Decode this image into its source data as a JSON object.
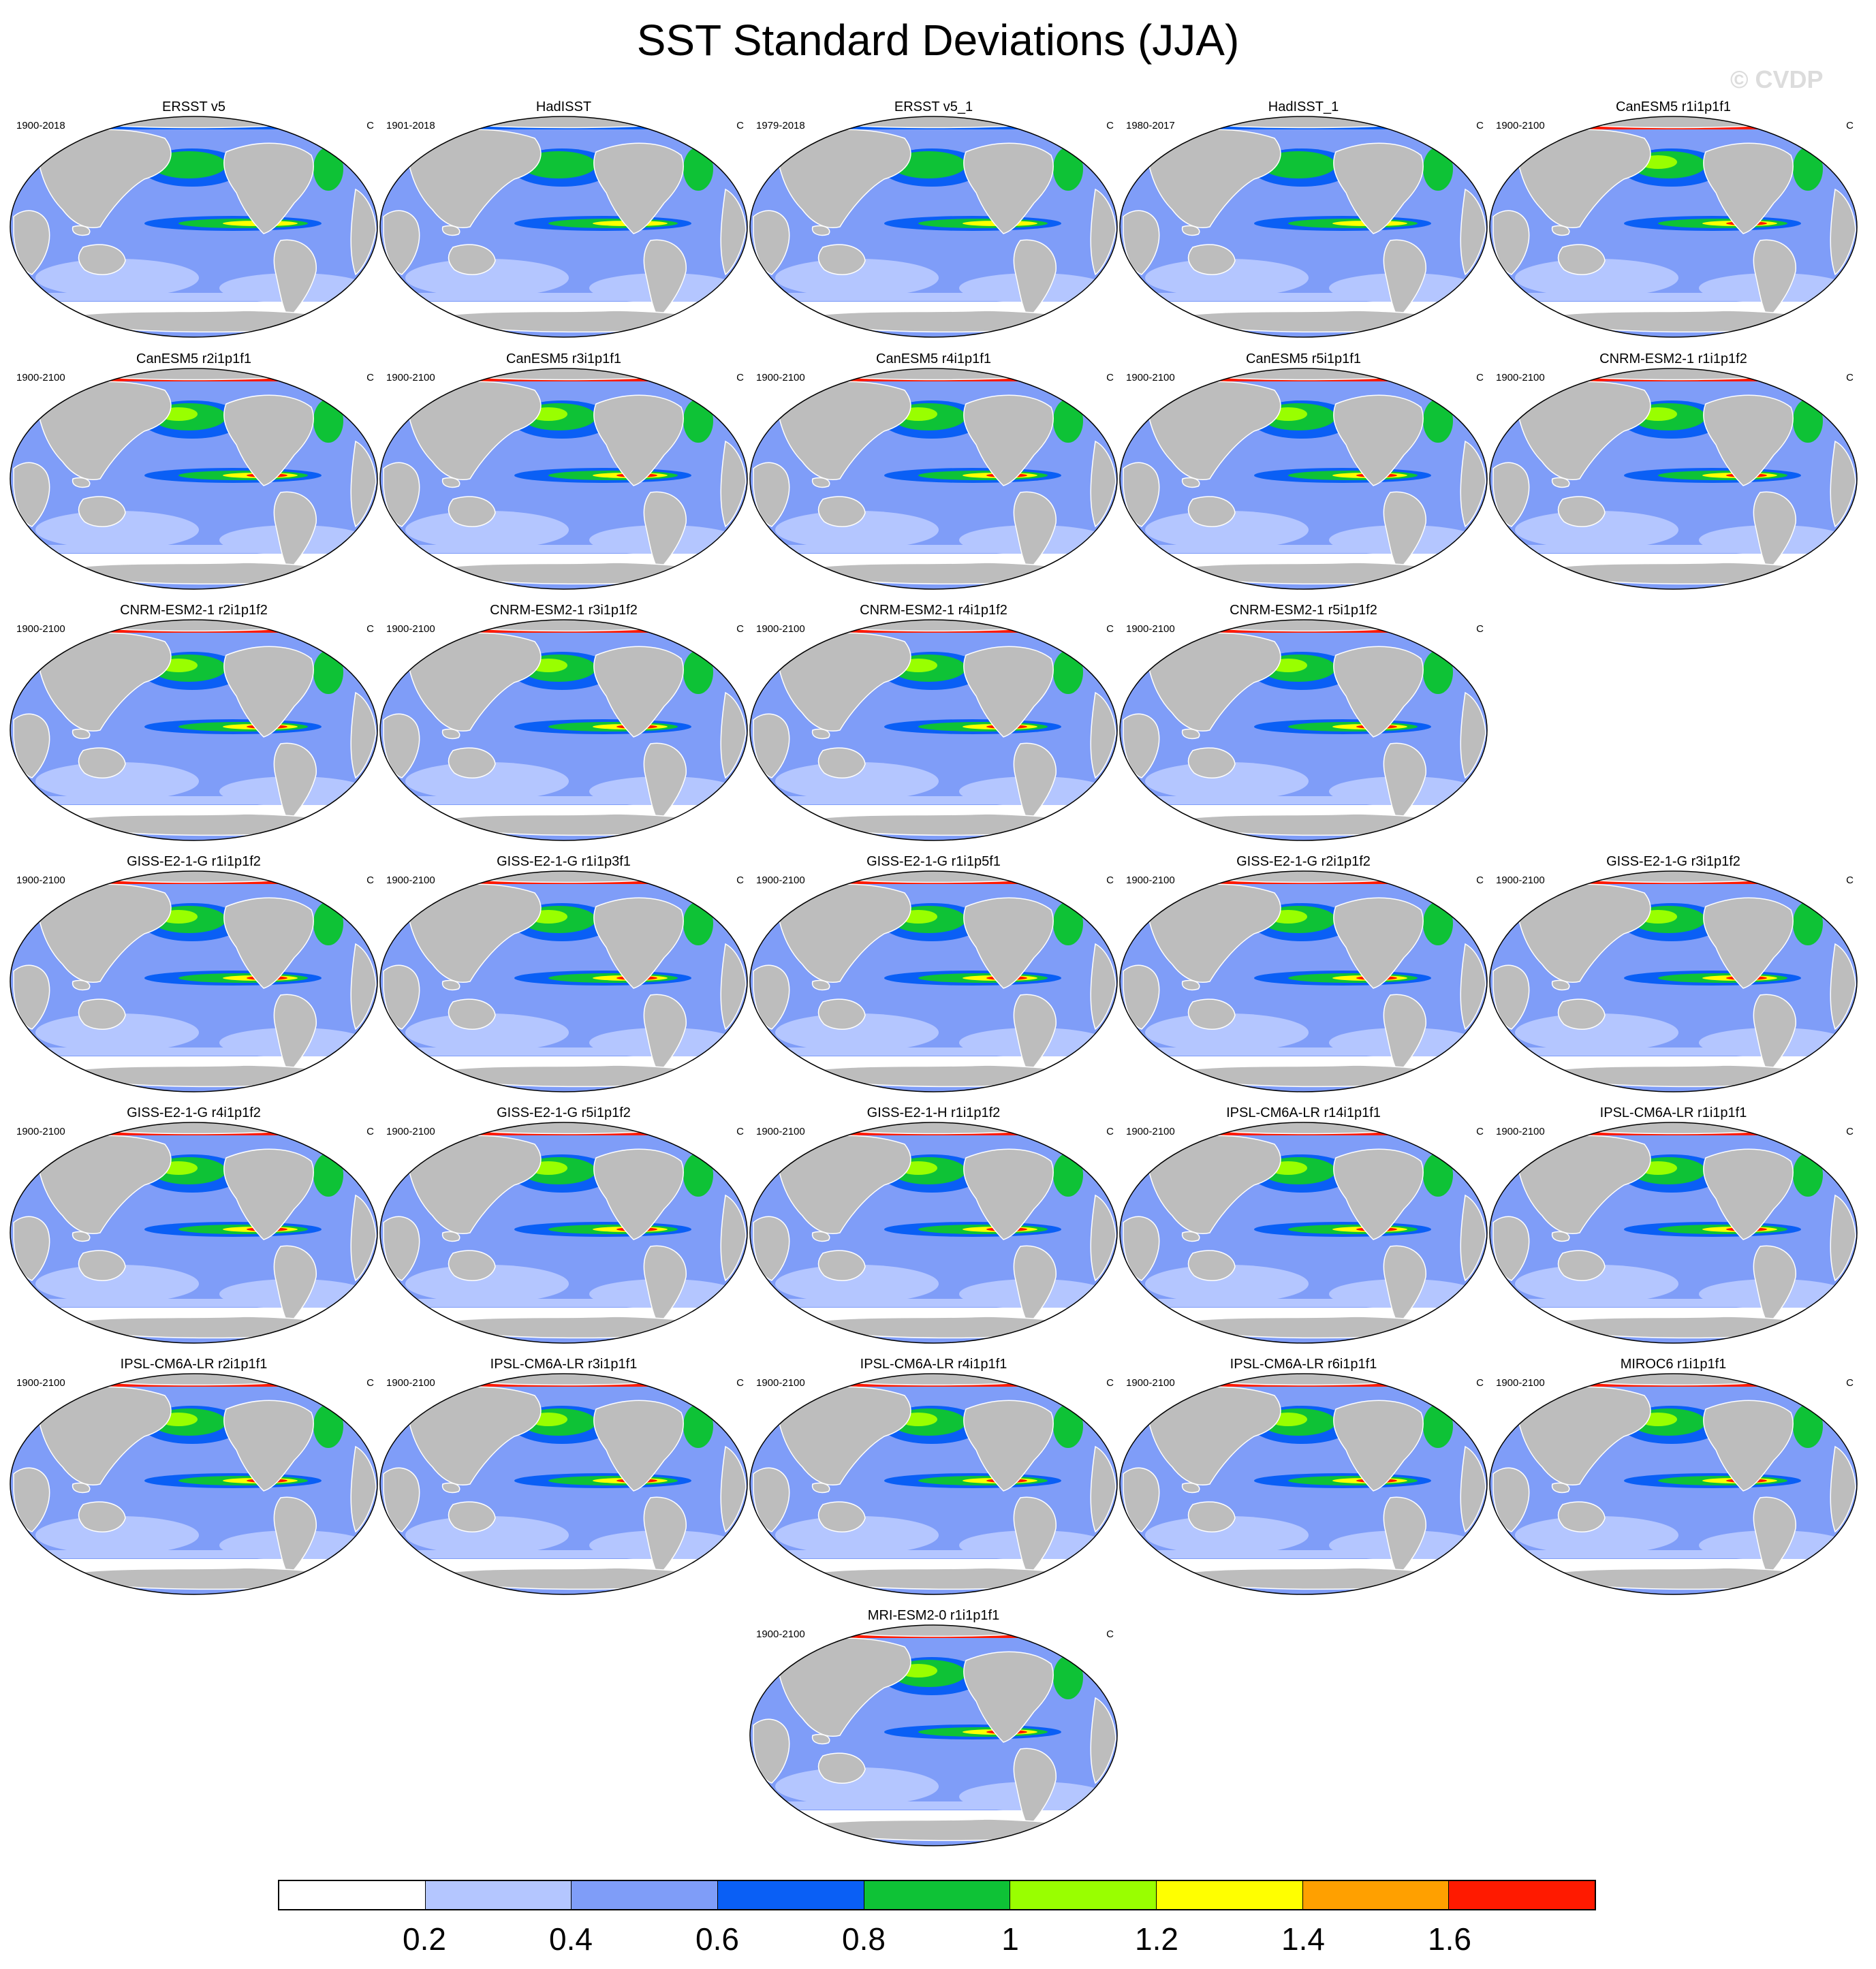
{
  "title": "SST Standard Deviations (JJA)",
  "watermark": "© CVDP",
  "units": "C",
  "panels": [
    {
      "name": "ERSST v5",
      "years": "1900-2018",
      "row": 0,
      "col": 0
    },
    {
      "name": "HadISST",
      "years": "1901-2018",
      "row": 0,
      "col": 1
    },
    {
      "name": "ERSST v5_1",
      "years": "1979-2018",
      "row": 0,
      "col": 2
    },
    {
      "name": "HadISST_1",
      "years": "1980-2017",
      "row": 0,
      "col": 3
    },
    {
      "name": "CanESM5 r1i1p1f1",
      "years": "1900-2100",
      "row": 0,
      "col": 4
    },
    {
      "name": "CanESM5 r2i1p1f1",
      "years": "1900-2100",
      "row": 1,
      "col": 0
    },
    {
      "name": "CanESM5 r3i1p1f1",
      "years": "1900-2100",
      "row": 1,
      "col": 1
    },
    {
      "name": "CanESM5 r4i1p1f1",
      "years": "1900-2100",
      "row": 1,
      "col": 2
    },
    {
      "name": "CanESM5 r5i1p1f1",
      "years": "1900-2100",
      "row": 1,
      "col": 3
    },
    {
      "name": "CNRM-ESM2-1 r1i1p1f2",
      "years": "1900-2100",
      "row": 1,
      "col": 4
    },
    {
      "name": "CNRM-ESM2-1 r2i1p1f2",
      "years": "1900-2100",
      "row": 2,
      "col": 0
    },
    {
      "name": "CNRM-ESM2-1 r3i1p1f2",
      "years": "1900-2100",
      "row": 2,
      "col": 1
    },
    {
      "name": "CNRM-ESM2-1 r4i1p1f2",
      "years": "1900-2100",
      "row": 2,
      "col": 2
    },
    {
      "name": "CNRM-ESM2-1 r5i1p1f2",
      "years": "1900-2100",
      "row": 2,
      "col": 3
    },
    {
      "name": "GISS-E2-1-G r1i1p1f2",
      "years": "1900-2100",
      "row": 3,
      "col": 0
    },
    {
      "name": "GISS-E2-1-G r1i1p3f1",
      "years": "1900-2100",
      "row": 3,
      "col": 1
    },
    {
      "name": "GISS-E2-1-G r1i1p5f1",
      "years": "1900-2100",
      "row": 3,
      "col": 2
    },
    {
      "name": "GISS-E2-1-G r2i1p1f2",
      "years": "1900-2100",
      "row": 3,
      "col": 3
    },
    {
      "name": "GISS-E2-1-G r3i1p1f2",
      "years": "1900-2100",
      "row": 3,
      "col": 4
    },
    {
      "name": "GISS-E2-1-G r4i1p1f2",
      "years": "1900-2100",
      "row": 4,
      "col": 0
    },
    {
      "name": "GISS-E2-1-G r5i1p1f2",
      "years": "1900-2100",
      "row": 4,
      "col": 1
    },
    {
      "name": "GISS-E2-1-H r1i1p1f2",
      "years": "1900-2100",
      "row": 4,
      "col": 2
    },
    {
      "name": "IPSL-CM6A-LR r14i1p1f1",
      "years": "1900-2100",
      "row": 4,
      "col": 3
    },
    {
      "name": "IPSL-CM6A-LR r1i1p1f1",
      "years": "1900-2100",
      "row": 4,
      "col": 4
    },
    {
      "name": "IPSL-CM6A-LR r2i1p1f1",
      "years": "1900-2100",
      "row": 5,
      "col": 0
    },
    {
      "name": "IPSL-CM6A-LR r3i1p1f1",
      "years": "1900-2100",
      "row": 5,
      "col": 1
    },
    {
      "name": "IPSL-CM6A-LR r4i1p1f1",
      "years": "1900-2100",
      "row": 5,
      "col": 2
    },
    {
      "name": "IPSL-CM6A-LR r6i1p1f1",
      "years": "1900-2100",
      "row": 5,
      "col": 3
    },
    {
      "name": "MIROC6 r1i1p1f1",
      "years": "1900-2100",
      "row": 5,
      "col": 4
    },
    {
      "name": "MRI-ESM2-0 r1i1p1f1",
      "years": "1900-2100",
      "row": 6,
      "col": 2
    }
  ],
  "colorbar": {
    "colors": [
      "#ffffff",
      "#b4c6ff",
      "#7f9df8",
      "#0a5ff5",
      "#0ec236",
      "#99ff00",
      "#ffff00",
      "#ffa000",
      "#ff1a00"
    ],
    "labels": [
      "0.2",
      "0.4",
      "0.6",
      "0.8",
      "1",
      "1.2",
      "1.4",
      "1.6"
    ]
  },
  "colors": {
    "land": "#bdbdbd",
    "ocean_base": "#7f9df8"
  }
}
